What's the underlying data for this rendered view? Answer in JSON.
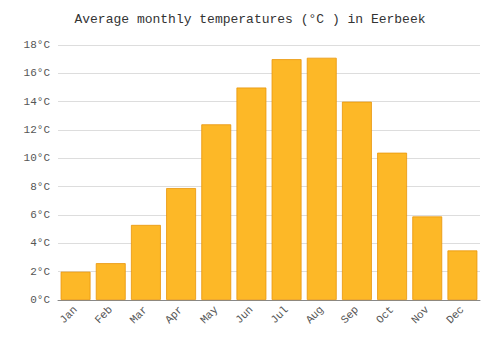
{
  "chart_data": {
    "type": "bar",
    "title": "Average monthly temperatures (°C ) in Eerbeek",
    "categories": [
      "Jan",
      "Feb",
      "Mar",
      "Apr",
      "May",
      "Jun",
      "Jul",
      "Aug",
      "Sep",
      "Oct",
      "Nov",
      "Dec"
    ],
    "values": [
      2.0,
      2.6,
      5.3,
      7.9,
      12.4,
      15.0,
      17.0,
      17.1,
      14.0,
      10.4,
      5.9,
      3.5
    ],
    "color": "#FDB827",
    "ylim": [
      0,
      18
    ],
    "yticks": [
      {
        "value": 0,
        "label": "0°C"
      },
      {
        "value": 2,
        "label": "2°C"
      },
      {
        "value": 4,
        "label": "4°C"
      },
      {
        "value": 6,
        "label": "6°C"
      },
      {
        "value": 8,
        "label": "8°C"
      },
      {
        "value": 10,
        "label": "10°C"
      },
      {
        "value": 12,
        "label": "12°C"
      },
      {
        "value": 14,
        "label": "14°C"
      },
      {
        "value": 16,
        "label": "16°C"
      },
      {
        "value": 18,
        "label": "18°C"
      }
    ],
    "grid": true
  }
}
